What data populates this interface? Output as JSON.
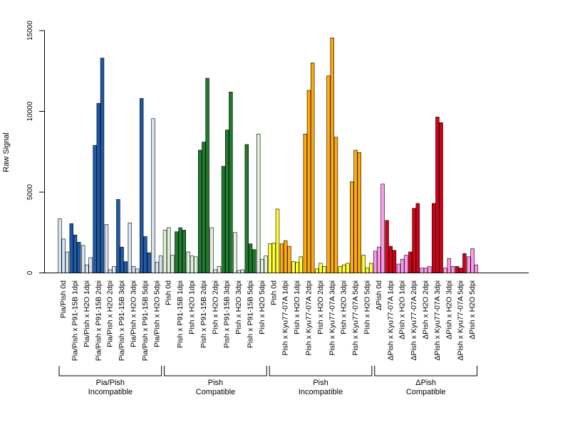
{
  "chart_data": {
    "type": "bar",
    "ylabel": "Raw Signal",
    "ylim": [
      0,
      15000
    ],
    "yticks": [
      0,
      5000,
      10000,
      15000
    ],
    "categories": [
      "Pia/Pish 0d",
      "Pia/Pish x P91-15B 1dpi",
      "Pia/Pish x H2O 1dpi",
      "Pia/Pish x P91-15B 2dpi",
      "Pia/Pish x H2O 2dpi",
      "Pia/Pish x P91-15B 3dpi",
      "Pia/Pish x H2O 3dpi",
      "Pia/Pish x P91-15B 5dpi",
      "Pia/Pish x H2O 5dpi",
      "Pish 0d",
      "Pish x P91-15B 1dpi",
      "Pish x H2O 1dpi",
      "Pish x P91-15B 2dpi",
      "Pish x H2O 2dpi",
      "Pish x P91-15B 3dpi",
      "Pish x H2O 3dpi",
      "Pish x P91-15B 5dpi",
      "Pish x H2O 5dpi",
      "Pish 0d",
      "Pish x Kyu77-07A 1dpi",
      "Pish x H2O 1dpi",
      "Pish x Kyu77-07A 2dpi",
      "Pish x H2O 2dpi",
      "Pish x Kyu77-07A 3dpi",
      "Pish x H2O 3dpi",
      "Pish x Kyu77-07A 5dpi",
      "Pish x H2O 5dpi",
      "ΔPish 0d",
      "ΔPish x Kyu77-07A 1dpi",
      "ΔPish x H2O 1dpi",
      "ΔPish x Kyu77-07A 2dpi",
      "ΔPish x H2O 2dpi",
      "ΔPish x Kyu77-07A 3dpi",
      "ΔPish x H2O 3dpi",
      "ΔPish x Kyu77-07A 5dpi",
      "ΔPish x H2O 5dpi"
    ],
    "values": [
      [
        3350,
        2100,
        1300
      ],
      [
        3050,
        2350,
        1900
      ],
      [
        1700,
        500,
        950
      ],
      [
        7900,
        10500,
        13300
      ],
      [
        3000,
        200,
        400
      ],
      [
        4550,
        1600,
        700
      ],
      [
        3100,
        400,
        250
      ],
      [
        10800,
        2250,
        1250
      ],
      [
        9550,
        650,
        1050
      ],
      [
        2650,
        2800,
        1100
      ],
      [
        2550,
        2800,
        2650
      ],
      [
        1300,
        1050,
        1000
      ],
      [
        7600,
        8100,
        12050
      ],
      [
        2800,
        200,
        400
      ],
      [
        6600,
        8850,
        11200
      ],
      [
        2500,
        150,
        200
      ],
      [
        7950,
        1800,
        1450
      ],
      [
        8600,
        850,
        1050
      ],
      [
        1800,
        1850,
        3950
      ],
      [
        1800,
        2000,
        1650
      ],
      [
        700,
        650,
        1000
      ],
      [
        8600,
        11300,
        13000
      ],
      [
        250,
        600,
        400
      ],
      [
        12200,
        14550,
        8400
      ],
      [
        400,
        500,
        600
      ],
      [
        5650,
        7600,
        7450
      ],
      [
        1100,
        300,
        600
      ],
      [
        1350,
        1600,
        5500
      ],
      [
        3250,
        1650,
        1400
      ],
      [
        550,
        850,
        1100
      ],
      [
        1300,
        4000,
        4300
      ],
      [
        300,
        300,
        400
      ],
      [
        4300,
        9650,
        9300
      ],
      [
        300,
        900,
        400
      ],
      [
        400,
        300,
        1200
      ],
      [
        1000,
        1500,
        500
      ]
    ],
    "groups": [
      {
        "label_lines": [
          "Pia/Pish",
          "Incompatible"
        ],
        "start": 0,
        "end": 8
      },
      {
        "label_lines": [
          "Pish",
          "Compatible"
        ],
        "start": 9,
        "end": 17
      },
      {
        "label_lines": [
          "Pish",
          "Incompatible"
        ],
        "start": 18,
        "end": 26
      },
      {
        "label_lines": [
          "ΔPish",
          "Compatible"
        ],
        "start": 27,
        "end": 35
      }
    ],
    "colors": {
      "group_light": [
        "#d6e4f2",
        "#e0f2db",
        "#ffff33",
        "#ff99ee"
      ],
      "group_dark": [
        "#1f5aa8",
        "#1e7a2e",
        "#ffaa11",
        "#d40018"
      ]
    },
    "grid": false,
    "legend": "none"
  }
}
